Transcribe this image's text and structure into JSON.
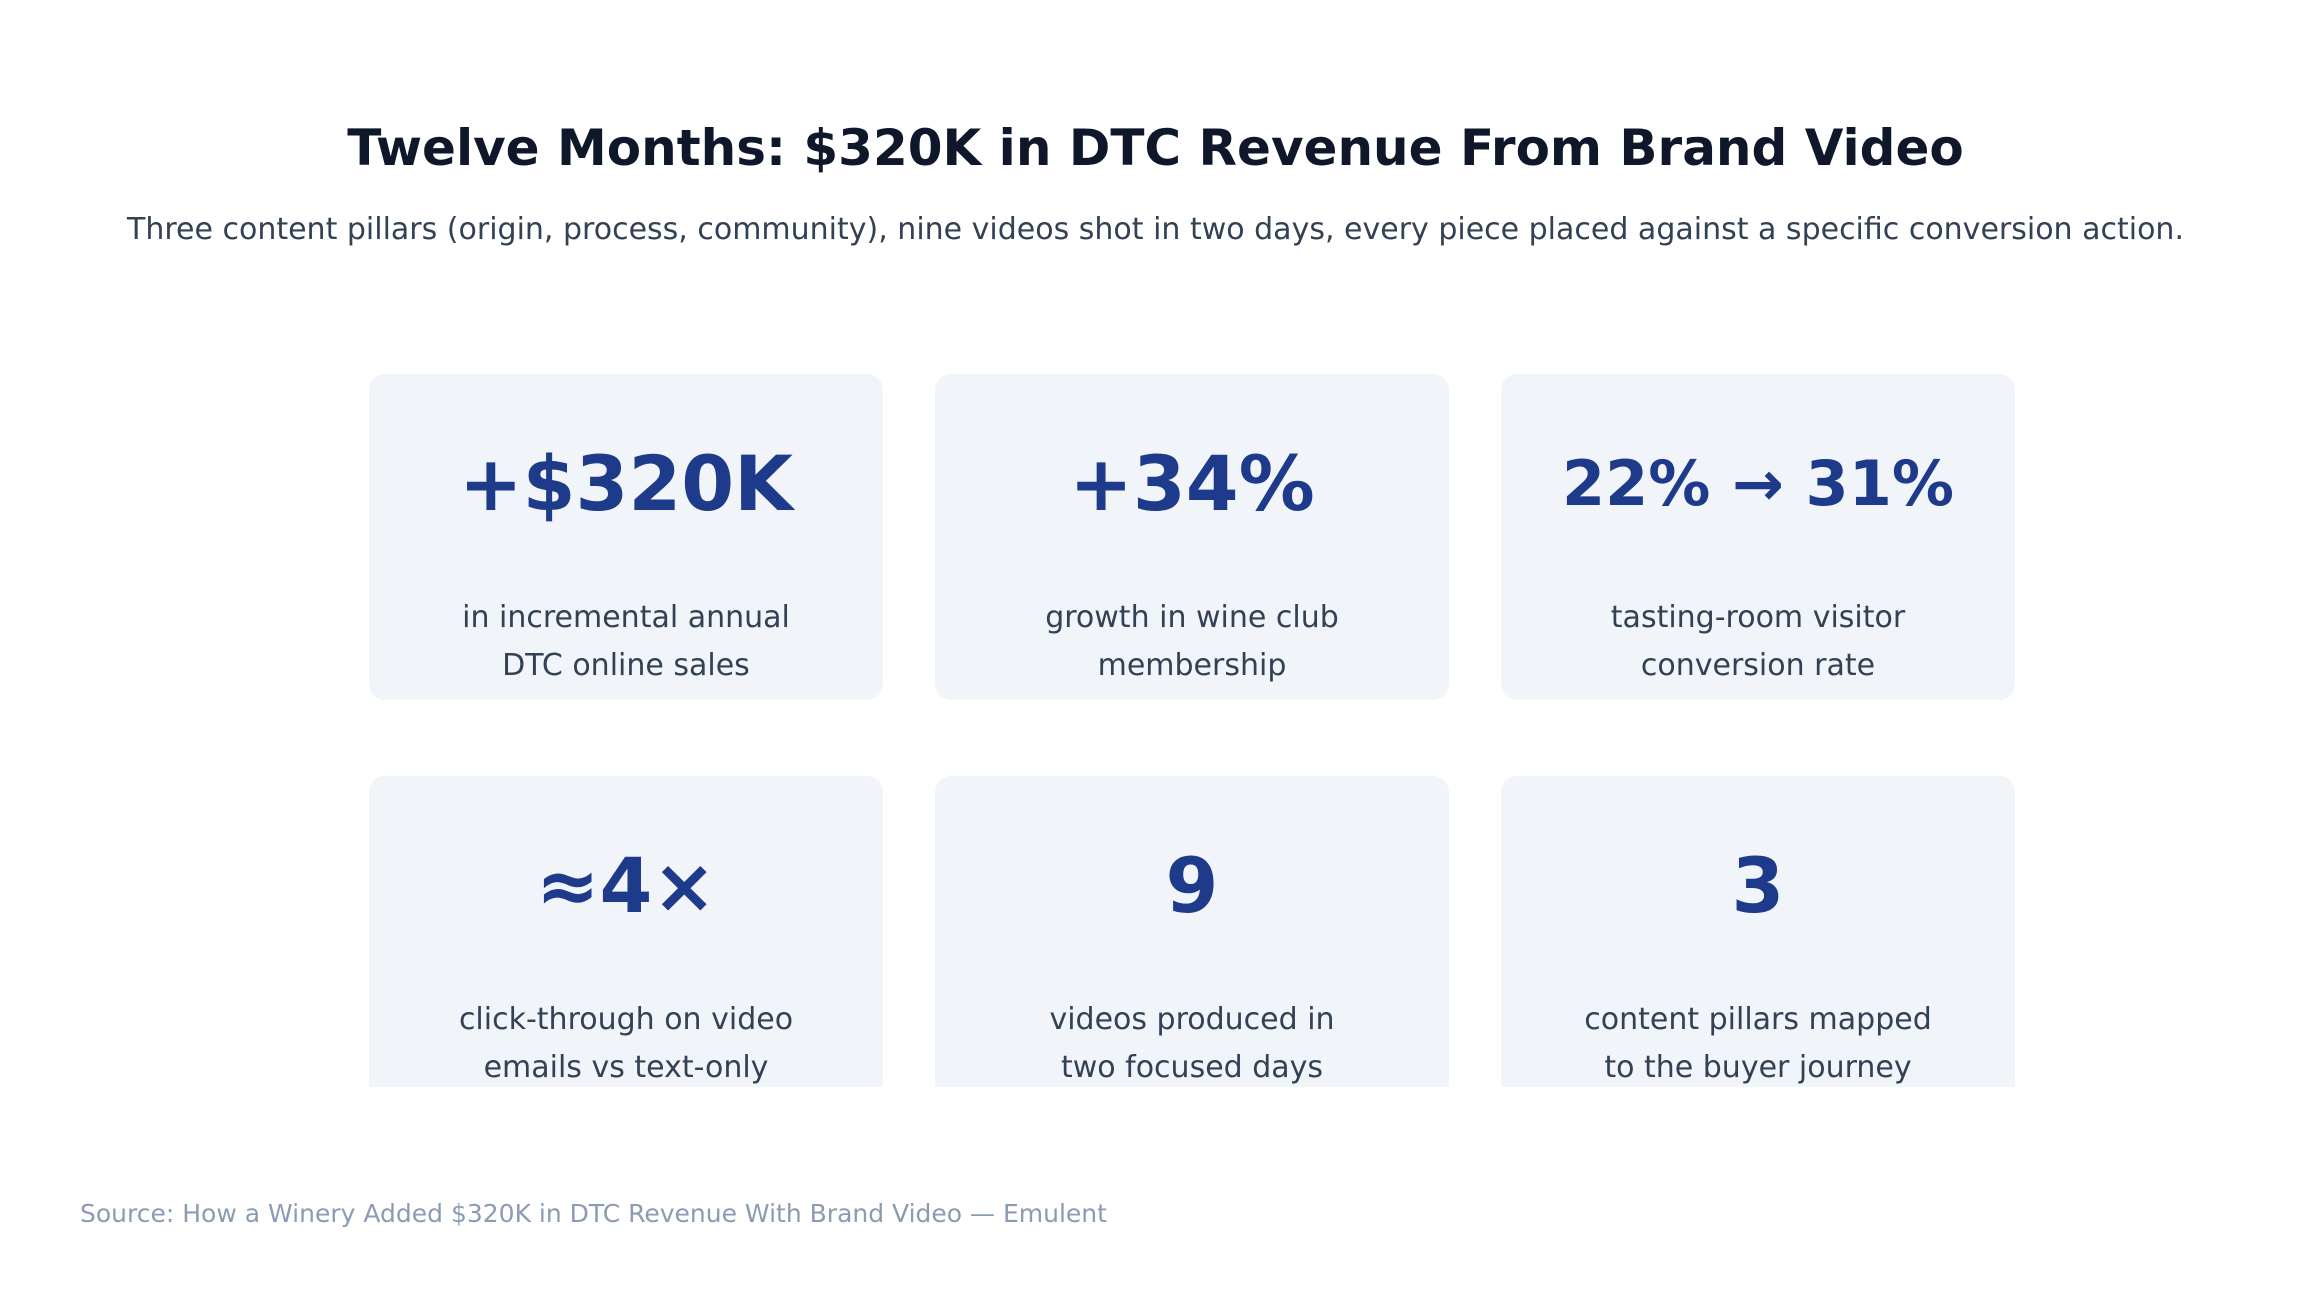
{
  "header": {
    "title": "Twelve Months: $320K in DTC Revenue From Brand Video",
    "subtitle": "Three content pillars (origin, process, community), nine videos shot in two days, every piece placed against a specific conversion action."
  },
  "stats": [
    {
      "value": "+$320K",
      "label": "in incremental annual\nDTC online sales"
    },
    {
      "value": "+34%",
      "label": "growth in wine club\nmembership"
    },
    {
      "value": "22% → 31%",
      "label": "tasting-room visitor\nconversion rate"
    },
    {
      "value": "≈4×",
      "label": "click-through on video\nemails vs text-only"
    },
    {
      "value": "9",
      "label": "videos produced in\ntwo focused days"
    },
    {
      "value": "3",
      "label": "content pillars mapped\nto the buyer journey"
    }
  ],
  "footer": {
    "source": "Source: How a Winery Added $320K in DTC Revenue With Brand Video — Emulent"
  },
  "colors": {
    "title": "#0f172a",
    "stat_value": "#1e3a8a",
    "card_background": "#f1f4f9",
    "body_text": "#334155",
    "source_text": "#8b9bb4"
  }
}
